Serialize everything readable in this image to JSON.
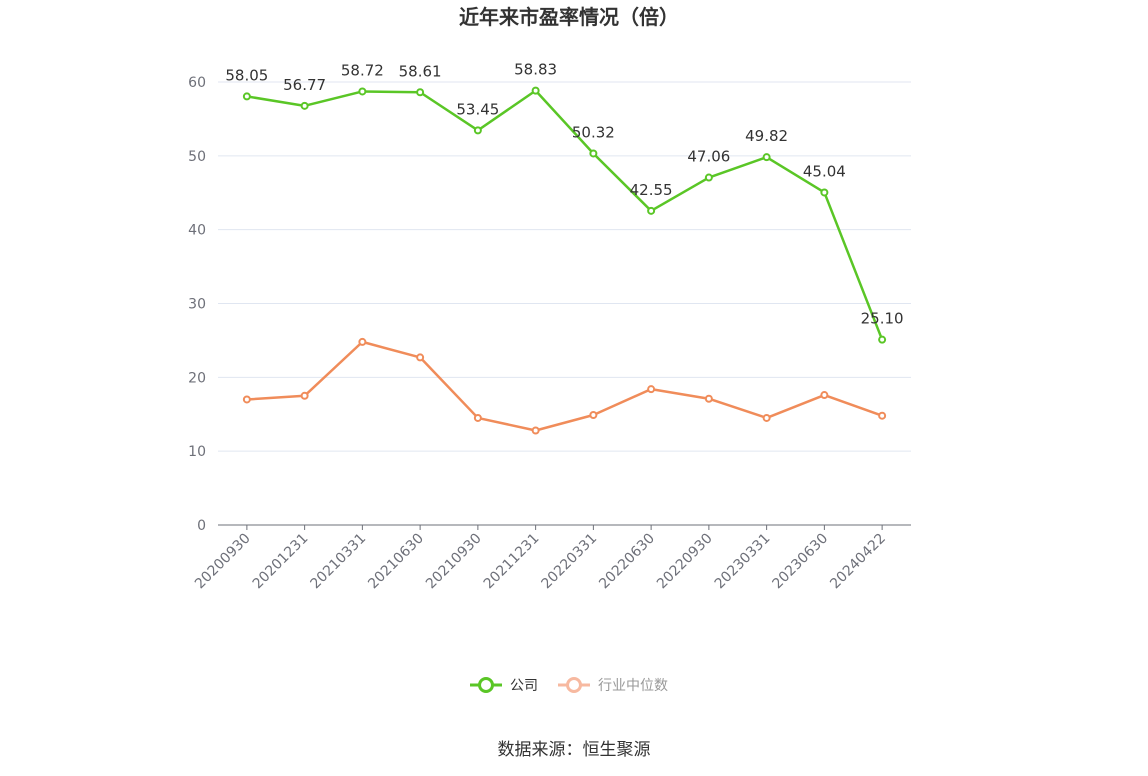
{
  "chart_data": {
    "type": "line",
    "title": "近年来市盈率情况（倍）",
    "categories": [
      "20200930",
      "20201231",
      "20210331",
      "20210630",
      "20210930",
      "20211231",
      "20220331",
      "20220630",
      "20220930",
      "20230331",
      "20230630",
      "20240422"
    ],
    "series": [
      {
        "name": "公司",
        "values": [
          58.05,
          56.77,
          58.72,
          58.61,
          53.45,
          58.83,
          50.32,
          42.55,
          47.06,
          49.82,
          45.04,
          25.1
        ],
        "labels": [
          "58.05",
          "56.77",
          "58.72",
          "58.61",
          "53.45",
          "58.83",
          "50.32",
          "42.55",
          "47.06",
          "49.82",
          "45.04",
          "25.10"
        ],
        "color": "#5ac626"
      },
      {
        "name": "行业中位数",
        "values": [
          17.0,
          17.5,
          24.8,
          22.7,
          14.5,
          12.8,
          14.9,
          18.4,
          17.1,
          14.5,
          17.6,
          14.8
        ],
        "color": "#f08c5a",
        "legend_color": "#f7b9a0"
      }
    ],
    "yticks": [
      "0",
      "10",
      "20",
      "30",
      "40",
      "50",
      "60"
    ],
    "ylim": [
      0,
      60
    ],
    "grid": true,
    "legend_position": "bottom-center"
  },
  "source": "数据来源：恒生聚源"
}
